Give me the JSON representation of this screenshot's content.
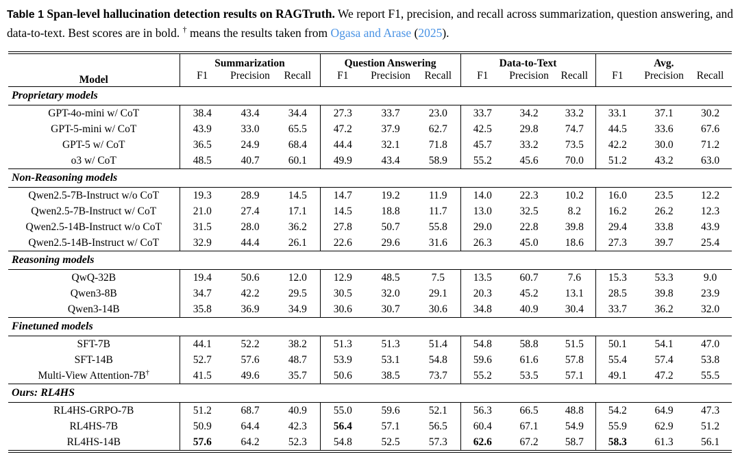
{
  "colors": {
    "link": "#4892e4",
    "text": "#000000",
    "background": "#ffffff"
  },
  "caption": {
    "label": "Table 1",
    "title": "Span-level hallucination detection results on RAGTruth.",
    "body": "We report F1, precision, and recall across summarization, question answering, and data-to-text. Best scores are in bold.",
    "dagger": "†",
    "dagger_note": "means the results taken from",
    "link_authors": "Ogasa and Arase",
    "paren_open": "(",
    "link_year": "2025",
    "paren_close": ")."
  },
  "table": {
    "model_header": "Model",
    "groups": [
      {
        "label": "Summarization",
        "sub": [
          "F1",
          "Precision",
          "Recall"
        ]
      },
      {
        "label": "Question Answering",
        "sub": [
          "F1",
          "Precision",
          "Recall"
        ]
      },
      {
        "label": "Data-to-Text",
        "sub": [
          "F1",
          "Precision",
          "Recall"
        ]
      },
      {
        "label": "Avg.",
        "sub": [
          "F1",
          "Precision",
          "Recall"
        ]
      }
    ],
    "sections": [
      {
        "label": "Proprietary models",
        "rows": [
          {
            "model": "GPT-4o-mini w/ CoT",
            "values": [
              "38.4",
              "43.4",
              "34.4",
              "27.3",
              "33.7",
              "23.0",
              "33.7",
              "34.2",
              "33.2",
              "33.1",
              "37.1",
              "30.2"
            ],
            "bold": []
          },
          {
            "model": "GPT-5-mini w/ CoT",
            "values": [
              "43.9",
              "33.0",
              "65.5",
              "47.2",
              "37.9",
              "62.7",
              "42.5",
              "29.8",
              "74.7",
              "44.5",
              "33.6",
              "67.6"
            ],
            "bold": []
          },
          {
            "model": "GPT-5 w/ CoT",
            "values": [
              "36.5",
              "24.9",
              "68.4",
              "44.4",
              "32.1",
              "71.8",
              "45.7",
              "33.2",
              "73.5",
              "42.2",
              "30.0",
              "71.2"
            ],
            "bold": []
          },
          {
            "model": "o3 w/ CoT",
            "values": [
              "48.5",
              "40.7",
              "60.1",
              "49.9",
              "43.4",
              "58.9",
              "55.2",
              "45.6",
              "70.0",
              "51.2",
              "43.2",
              "63.0"
            ],
            "bold": []
          }
        ]
      },
      {
        "label": "Non-Reasoning models",
        "rows": [
          {
            "model": "Qwen2.5-7B-Instruct w/o CoT",
            "values": [
              "19.3",
              "28.9",
              "14.5",
              "14.7",
              "19.2",
              "11.9",
              "14.0",
              "22.3",
              "10.2",
              "16.0",
              "23.5",
              "12.2"
            ],
            "bold": []
          },
          {
            "model": "Qwen2.5-7B-Instruct w/ CoT",
            "values": [
              "21.0",
              "27.4",
              "17.1",
              "14.5",
              "18.8",
              "11.7",
              "13.0",
              "32.5",
              "8.2",
              "16.2",
              "26.2",
              "12.3"
            ],
            "bold": []
          },
          {
            "model": "Qwen2.5-14B-Instruct w/o CoT",
            "values": [
              "31.5",
              "28.0",
              "36.2",
              "27.8",
              "50.7",
              "55.8",
              "29.0",
              "22.8",
              "39.8",
              "29.4",
              "33.8",
              "43.9"
            ],
            "bold": []
          },
          {
            "model": "Qwen2.5-14B-Instruct w/ CoT",
            "values": [
              "32.9",
              "44.4",
              "26.1",
              "22.6",
              "29.6",
              "31.6",
              "26.3",
              "45.0",
              "18.6",
              "27.3",
              "39.7",
              "25.4"
            ],
            "bold": []
          }
        ]
      },
      {
        "label": "Reasoning models",
        "rows": [
          {
            "model": "QwQ-32B",
            "values": [
              "19.4",
              "50.6",
              "12.0",
              "12.9",
              "48.5",
              "7.5",
              "13.5",
              "60.7",
              "7.6",
              "15.3",
              "53.3",
              "9.0"
            ],
            "bold": []
          },
          {
            "model": "Qwen3-8B",
            "values": [
              "34.7",
              "42.2",
              "29.5",
              "30.5",
              "32.0",
              "29.1",
              "20.3",
              "45.2",
              "13.1",
              "28.5",
              "39.8",
              "23.9"
            ],
            "bold": []
          },
          {
            "model": "Qwen3-14B",
            "values": [
              "35.8",
              "36.9",
              "34.9",
              "30.6",
              "30.7",
              "30.6",
              "34.8",
              "40.9",
              "30.4",
              "33.7",
              "36.2",
              "32.0"
            ],
            "bold": []
          }
        ]
      },
      {
        "label": "Finetuned models",
        "rows": [
          {
            "model": "SFT-7B",
            "values": [
              "44.1",
              "52.2",
              "38.2",
              "51.3",
              "51.3",
              "51.4",
              "54.8",
              "58.8",
              "51.5",
              "50.1",
              "54.1",
              "47.0"
            ],
            "bold": []
          },
          {
            "model": "SFT-14B",
            "values": [
              "52.7",
              "57.6",
              "48.7",
              "53.9",
              "53.1",
              "54.8",
              "59.6",
              "61.6",
              "57.8",
              "55.4",
              "57.4",
              "53.8"
            ],
            "bold": []
          },
          {
            "model": "Multi-View Attention-7B",
            "model_superscript": "†",
            "values": [
              "41.5",
              "49.6",
              "35.7",
              "50.6",
              "38.5",
              "73.7",
              "55.2",
              "53.5",
              "57.1",
              "49.1",
              "47.2",
              "55.5"
            ],
            "bold": []
          }
        ]
      },
      {
        "label": "Ours: RL4HS",
        "rows": [
          {
            "model": "RL4HS-GRPO-7B",
            "values": [
              "51.2",
              "68.7",
              "40.9",
              "55.0",
              "59.6",
              "52.1",
              "56.3",
              "66.5",
              "48.8",
              "54.2",
              "64.9",
              "47.3"
            ],
            "bold": []
          },
          {
            "model": "RL4HS-7B",
            "values": [
              "50.9",
              "64.4",
              "42.3",
              "56.4",
              "57.1",
              "56.5",
              "60.4",
              "67.1",
              "54.9",
              "55.9",
              "62.9",
              "51.2"
            ],
            "bold": [
              3
            ]
          },
          {
            "model": "RL4HS-14B",
            "values": [
              "57.6",
              "64.2",
              "52.3",
              "54.8",
              "52.5",
              "57.3",
              "62.6",
              "67.2",
              "58.7",
              "58.3",
              "61.3",
              "56.1"
            ],
            "bold": [
              0,
              6,
              9
            ]
          }
        ]
      }
    ]
  }
}
